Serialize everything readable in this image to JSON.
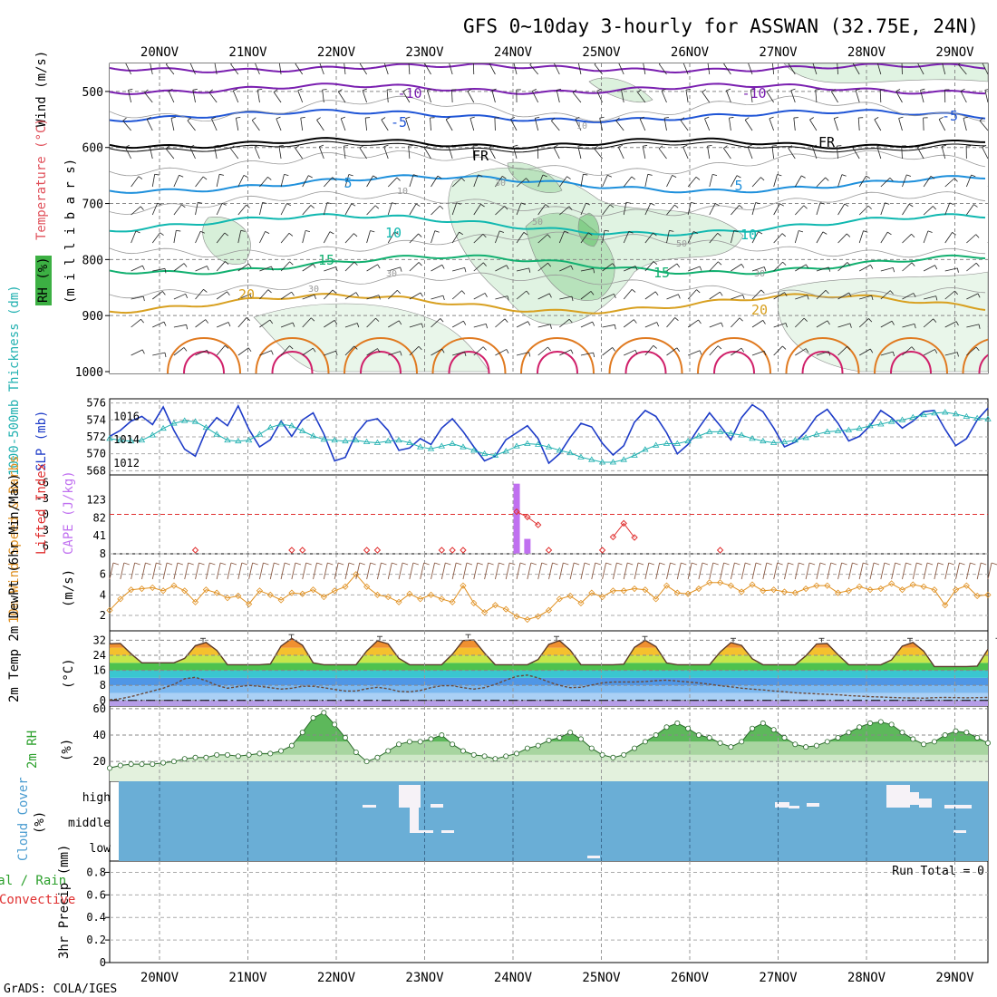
{
  "title": "GFS 0~10day 3-hourly for ASSWAN (32.75E, 24N)",
  "footer": "GrADS: COLA/IGES",
  "day_labels": [
    "20NOV",
    "21NOV",
    "22NOV",
    "23NOV",
    "24NOV",
    "25NOV",
    "26NOV",
    "27NOV",
    "28NOV",
    "29NOV"
  ],
  "colors": {
    "temp_contour_cold": "#7a1fb0",
    "temp_contour_blue": "#1f55d6",
    "temp_contour_frz": "#000000",
    "temp_contour_lightblue": "#1e90dc",
    "temp_contour_teal": "#10b8b0",
    "temp_contour_green": "#12b070",
    "temp_contour_orange": "#d8a020",
    "slp": "#1e3cc8",
    "thickness": "#20b0b0",
    "cape": "#c070f0",
    "lifted_index": "#e03030",
    "wind_speed": "#e09020",
    "rh2m": "#2ca02c",
    "cloud_bg": "#6aaed6",
    "rh_shade": "#3cb043"
  },
  "panels": {
    "upper": {
      "ylabels": [
        "Wind (m/s)",
        "Temperature (°C)",
        "RH (%)",
        "(m i l l i b a r s)"
      ],
      "yticks": [
        500,
        600,
        700,
        800,
        900,
        1000
      ],
      "contour_labels": [
        "-10",
        "-10",
        "-5",
        "-5",
        "FR",
        "FR",
        "5",
        "5",
        "10",
        "10",
        "15",
        "15",
        "20",
        "20",
        "10",
        "10",
        "30",
        "30",
        "30",
        "30",
        "50",
        "50"
      ]
    },
    "slp": {
      "ylabel_left": "1000-500mb Thickness (dm)",
      "ylabel_right": "SLP (mb)",
      "thickness_ticks": [
        568,
        570,
        572,
        574,
        576
      ],
      "slp_ticks": [
        1012,
        1014,
        1016
      ]
    },
    "cape": {
      "ylabel_left": "Lifted Index",
      "ylabel_right": "CAPE (J/kg)",
      "li_ticks": [
        "-6",
        "-3",
        "0",
        "3",
        "6"
      ],
      "cape_ticks": [
        "123",
        "82",
        "41"
      ]
    },
    "wind": {
      "ylabel": "10m Wind Speed & Barbs",
      "unit": "(m/s)",
      "ticks": [
        2,
        4,
        6,
        8
      ]
    },
    "temp": {
      "ylabel": "2m Temp 2m DewPt (6hr Min/Max)",
      "unit": "(°C)",
      "ticks": [
        0,
        8,
        16,
        24,
        32
      ]
    },
    "rh": {
      "ylabel": "2m RH",
      "unit": "(%)",
      "ticks": [
        20,
        40,
        60
      ]
    },
    "cloud": {
      "ylabel": "Cloud Cover",
      "unit": "(%)",
      "levels": [
        "high",
        "middle",
        "low"
      ]
    },
    "precip": {
      "ylabel_total": "Total / Rain",
      "ylabel_conv": "Convective",
      "ylabel_unit": "3hr Precip (mm)",
      "ticks": [
        "0",
        "0.2",
        "0.4",
        "0.6",
        "0.8"
      ],
      "run_total": "Run Total = 0"
    }
  },
  "chart_data": [
    {
      "type": "line",
      "title": "1000-500mb Thickness (dm) / SLP (mb)",
      "series": [
        {
          "name": "SLP (mb)",
          "values": [
            1014.3,
            1014.8,
            1015.6,
            1016.0,
            1015.3,
            1016.8,
            1014.8,
            1013.2,
            1012.6,
            1014.8,
            1015.9,
            1015.2,
            1016.9,
            1014.9,
            1013.4,
            1014.0,
            1015.6,
            1014.3,
            1015.7,
            1016.3,
            1014.5,
            1012.2,
            1012.5,
            1014.5,
            1015.6,
            1015.8,
            1014.8,
            1013.1,
            1013.3,
            1014.1,
            1013.6,
            1015.0,
            1015.8,
            1014.7,
            1013.4,
            1012.2,
            1012.6,
            1014.0,
            1014.6,
            1015.2,
            1014.1,
            1012.0,
            1012.8,
            1014.2,
            1015.4,
            1015.1,
            1013.7,
            1012.7,
            1013.5,
            1015.5,
            1016.5,
            1016.0,
            1014.6,
            1012.8,
            1013.6,
            1015.0,
            1016.3,
            1015.2,
            1014.0,
            1015.9,
            1017.0,
            1016.4,
            1015.0,
            1013.4,
            1013.8,
            1014.7,
            1016.0,
            1016.6,
            1015.4,
            1013.9,
            1014.3,
            1015.2,
            1016.5,
            1015.9,
            1015.0,
            1015.6,
            1016.4,
            1016.5,
            1014.9,
            1013.5,
            1014.1,
            1015.7,
            1016.7
          ]
        },
        {
          "name": "1000-500mb Thickness (dm)",
          "values": [
            571.8,
            571.6,
            571.5,
            571.6,
            572.2,
            573.0,
            573.6,
            573.9,
            573.8,
            573.1,
            572.3,
            571.6,
            571.5,
            571.6,
            572.3,
            573.1,
            573.5,
            573.3,
            572.7,
            572.1,
            571.7,
            571.6,
            571.5,
            571.6,
            571.4,
            571.3,
            571.5,
            571.6,
            571.3,
            570.8,
            570.6,
            570.9,
            571.2,
            570.8,
            570.4,
            570.0,
            569.8,
            570.3,
            570.9,
            571.2,
            571.1,
            570.8,
            570.4,
            570.1,
            569.6,
            569.3,
            569.0,
            569.0,
            569.3,
            569.8,
            570.5,
            571.0,
            571.2,
            571.2,
            571.5,
            572.1,
            572.6,
            572.6,
            572.4,
            572.2,
            571.8,
            571.5,
            571.3,
            571.4,
            571.6,
            571.9,
            572.3,
            572.6,
            572.7,
            572.8,
            573.0,
            573.3,
            573.5,
            573.8,
            574.0,
            574.3,
            574.6,
            574.8,
            574.9,
            574.7,
            574.4,
            574.2,
            574.1
          ]
        }
      ]
    },
    {
      "type": "bar",
      "title": "CAPE (J/kg) / Lifted Index",
      "series": [
        {
          "name": "CAPE (J/kg)",
          "values": [
            {
              "x_index": 38,
              "value": 160
            },
            {
              "x_index": 39,
              "value": 34
            }
          ]
        },
        {
          "name": "Lifted Index",
          "values": [
            {
              "x_index": 38,
              "value": -0.5
            },
            {
              "x_index": 39,
              "value": 0.5
            },
            {
              "x_index": 40,
              "value": 2.0
            },
            {
              "x_index": 47,
              "value": 4.3
            },
            {
              "x_index": 48,
              "value": 1.7
            },
            {
              "x_index": 49,
              "value": 4.4
            }
          ]
        }
      ]
    },
    {
      "type": "line",
      "title": "10m Wind Speed (m/s)",
      "series": [
        {
          "name": "10m Wind Speed",
          "values": [
            2.5,
            3.6,
            4.5,
            4.6,
            4.7,
            4.4,
            4.9,
            4.4,
            3.3,
            4.5,
            4.2,
            3.7,
            3.9,
            3.1,
            4.4,
            4.0,
            3.5,
            4.2,
            4.1,
            4.5,
            3.8,
            4.4,
            4.8,
            6.0,
            4.8,
            4.0,
            3.8,
            3.3,
            4.1,
            3.6,
            4.0,
            3.6,
            3.3,
            4.9,
            3.2,
            2.3,
            3.0,
            2.6,
            1.9,
            1.6,
            1.9,
            2.5,
            3.6,
            3.9,
            3.2,
            4.2,
            3.8,
            4.4,
            4.4,
            4.6,
            4.5,
            3.6,
            4.9,
            4.2,
            4.1,
            4.6,
            5.2,
            5.2,
            4.9,
            4.3,
            5.0,
            4.4,
            4.5,
            4.3,
            4.2,
            4.6,
            4.9,
            4.9,
            4.2,
            4.4,
            4.8,
            4.5,
            4.6,
            5.1,
            4.5,
            5.0,
            4.8,
            4.5,
            3.0,
            4.5,
            4.9,
            3.9,
            4.0
          ]
        }
      ]
    },
    {
      "type": "area",
      "title": "2m Temp / 2m DewPt (°C)",
      "series": [
        {
          "name": "2m Temp",
          "peaks": [
            31,
            33,
            32,
            33,
            32,
            32,
            31,
            31,
            31,
            31
          ],
          "troughs": [
            20,
            19,
            19,
            19,
            19,
            19,
            19,
            19,
            19,
            18
          ]
        },
        {
          "name": "2m DewPt",
          "values": [
            0.3,
            0.9,
            2.0,
            3.5,
            5.0,
            6.5,
            8.5,
            11.5,
            12.3,
            10.5,
            8.0,
            6.5,
            7.3,
            8.0,
            7.5,
            6.8,
            6.0,
            6.5,
            7.5,
            7.5,
            6.8,
            5.8,
            5.0,
            5.0,
            6.2,
            7.0,
            6.2,
            4.8,
            4.5,
            5.3,
            6.8,
            7.8,
            7.8,
            6.8,
            6.0,
            6.8,
            8.5,
            10.8,
            12.8,
            13.5,
            12.0,
            9.8,
            8.0,
            6.8,
            7.0,
            8.2,
            9.3,
            9.8,
            9.8,
            9.8,
            10.0,
            10.5,
            10.8,
            10.3,
            9.8,
            9.3,
            8.6,
            7.8,
            7.2,
            6.5,
            6.0,
            5.6,
            5.0,
            4.6,
            4.1,
            3.8,
            3.5,
            3.2,
            3.0,
            2.6,
            2.3,
            2.0,
            1.8,
            1.6,
            1.4,
            1.3,
            1.2,
            1.5,
            1.6,
            1.5,
            1.4,
            1.5,
            1.6
          ]
        }
      ]
    },
    {
      "type": "area",
      "title": "2m RH (%)",
      "series": [
        {
          "name": "2m RH",
          "values": [
            15,
            17,
            18,
            18,
            18,
            19,
            20,
            22,
            23,
            23,
            25,
            25,
            24,
            25,
            26,
            26,
            28,
            32,
            42,
            53,
            57,
            48,
            38,
            27,
            20,
            23,
            28,
            33,
            35,
            35,
            37,
            40,
            33,
            28,
            25,
            24,
            22,
            24,
            26,
            30,
            32,
            36,
            38,
            42,
            37,
            30,
            25,
            23,
            25,
            30,
            35,
            40,
            46,
            49,
            45,
            40,
            38,
            34,
            31,
            35,
            45,
            49,
            44,
            38,
            33,
            31,
            32,
            35,
            38,
            42,
            46,
            49,
            50,
            48,
            42,
            37,
            33,
            35,
            40,
            43,
            42,
            38,
            34
          ]
        }
      ]
    },
    {
      "type": "bar",
      "title": "3hr Precip (mm)",
      "series": [
        {
          "name": "Total / Rain",
          "values": []
        },
        {
          "name": "Convective",
          "values": []
        }
      ],
      "ylim": [
        0,
        0.9
      ]
    }
  ]
}
